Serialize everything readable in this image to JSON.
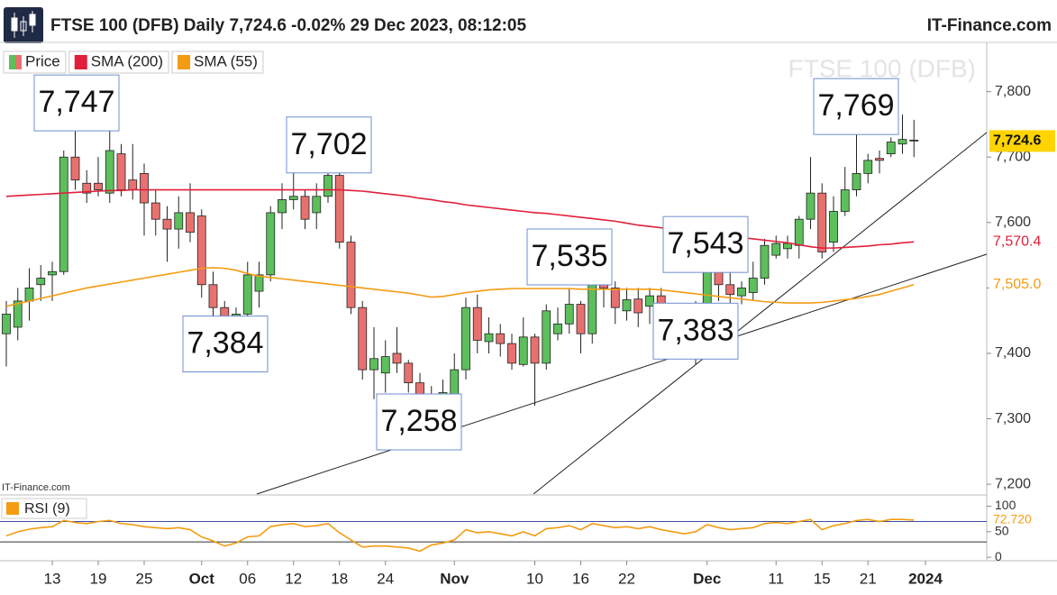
{
  "header": {
    "title": "FTSE 100 (DFB) Daily 7,724.6 -0.02% 29 Dec 2023, 08:12:05",
    "brand": "IT-Finance.com"
  },
  "chart_data": [
    {
      "type": "candlestick",
      "watermark": "FTSE 100 (DFB)",
      "source": "IT-Finance.com",
      "categories": [
        null,
        null,
        null,
        null,
        "13",
        null,
        null,
        null,
        "19",
        null,
        null,
        null,
        "25",
        null,
        null,
        null,
        null,
        "Oct",
        null,
        null,
        null,
        "06",
        null,
        null,
        null,
        "12",
        null,
        null,
        null,
        "18",
        null,
        null,
        null,
        "24",
        null,
        null,
        null,
        null,
        null,
        "Nov",
        null,
        null,
        null,
        null,
        null,
        null,
        "10",
        null,
        null,
        null,
        "16",
        null,
        null,
        null,
        "22",
        null,
        null,
        null,
        null,
        null,
        null,
        "Dec",
        null,
        null,
        null,
        null,
        null,
        "11",
        null,
        null,
        null,
        "15",
        null,
        null,
        null,
        "21",
        null,
        null,
        null,
        null,
        "2024"
      ],
      "series": [
        {
          "name": "Price",
          "up_color": "#5cbf5c",
          "down_color": "#e8716f",
          "last_label": "7,724.6",
          "open": [
            7430,
            7440,
            7480,
            7505,
            7520,
            7525,
            7700,
            7660,
            7660,
            7645,
            7705,
            7665,
            7675,
            7630,
            7605,
            7590,
            7615,
            7610,
            7505,
            7470,
            7425,
            7460,
            7495,
            7520,
            7615,
            7635,
            7640,
            7615,
            7640,
            7672,
            7570,
            7470,
            7375,
            7370,
            7400,
            7385,
            7355,
            7282,
            7325,
            7335,
            7375,
            7470,
            7418,
            7430,
            7415,
            7383,
            7425,
            7385,
            7430,
            7445,
            7475,
            7430,
            7510,
            7500,
            7465,
            7483,
            7472,
            7488,
            7460,
            7445,
            7430,
            7465,
            7530,
            7505,
            7488,
            7493,
            7515,
            7550,
            7560,
            7565,
            7605,
            7645,
            7570,
            7617,
            7650,
            7675,
            7698,
            7705,
            7720,
            7726,
            null
          ],
          "high": [
            7480,
            7500,
            7530,
            7535,
            7540,
            7710,
            7745,
            7680,
            7700,
            7747,
            7720,
            7720,
            7690,
            7650,
            7625,
            7640,
            7660,
            7620,
            7525,
            7480,
            7470,
            7540,
            7540,
            7625,
            7660,
            7680,
            7650,
            7660,
            7702,
            7690,
            7580,
            7480,
            7440,
            7420,
            7440,
            7390,
            7370,
            7350,
            7360,
            7400,
            7485,
            7490,
            7455,
            7445,
            7430,
            7455,
            7430,
            7475,
            7470,
            7500,
            7480,
            7535,
            7520,
            7510,
            7500,
            7500,
            7500,
            7500,
            7470,
            7455,
            7480,
            7543,
            7535,
            7530,
            7510,
            7540,
            7575,
            7580,
            7580,
            7610,
            7700,
            7660,
            7640,
            7685,
            7769,
            7705,
            7710,
            7730,
            7765,
            7757,
            null
          ],
          "low": [
            7380,
            7420,
            7450,
            7480,
            7480,
            7520,
            7650,
            7630,
            7640,
            7630,
            7640,
            7635,
            7580,
            7580,
            7540,
            7560,
            7570,
            7485,
            7450,
            7384,
            7400,
            7440,
            7470,
            7510,
            7590,
            7620,
            7590,
            7590,
            7630,
            7560,
            7460,
            7360,
            7330,
            7340,
            7370,
            7340,
            7258,
            7270,
            7300,
            7310,
            7360,
            7400,
            7400,
            7395,
            7375,
            7380,
            7320,
            7375,
            7420,
            7430,
            7400,
            7415,
            7470,
            7445,
            7450,
            7440,
            7445,
            7440,
            7400,
            7410,
            7383,
            7450,
            7480,
            7465,
            7475,
            7480,
            7505,
            7545,
            7545,
            7545,
            7590,
            7545,
            7555,
            7610,
            7640,
            7660,
            7675,
            7700,
            7705,
            7700,
            null
          ],
          "close": [
            7460,
            7480,
            7500,
            7515,
            7525,
            7700,
            7665,
            7645,
            7650,
            7710,
            7650,
            7650,
            7630,
            7605,
            7590,
            7615,
            7585,
            7505,
            7470,
            7425,
            7460,
            7520,
            7520,
            7615,
            7635,
            7640,
            7605,
            7640,
            7672,
            7570,
            7470,
            7375,
            7392,
            7395,
            7385,
            7355,
            7268,
            7335,
            7340,
            7375,
            7470,
            7420,
            7430,
            7415,
            7385,
            7425,
            7385,
            7465,
            7445,
            7475,
            7430,
            7510,
            7500,
            7470,
            7482,
            7462,
            7488,
            7460,
            7445,
            7432,
            7465,
            7530,
            7505,
            7490,
            7500,
            7515,
            7565,
            7568,
            7568,
            7605,
            7645,
            7555,
            7617,
            7650,
            7675,
            7695,
            7695,
            7723,
            7727,
            7724.6,
            null
          ]
        },
        {
          "name": "SMA (200)",
          "color": "#e0203a",
          "last_label": "7,570.4",
          "values": [
            7640,
            7641,
            7642,
            7643,
            7644,
            7645,
            7646,
            7647,
            7648,
            7649,
            7649,
            7650,
            7650,
            7650,
            7650,
            7650,
            7650,
            7650,
            7650,
            7650,
            7650,
            7650,
            7650,
            7650,
            7650,
            7650,
            7650,
            7650,
            7650,
            7650,
            7649,
            7648,
            7646,
            7644,
            7642,
            7640,
            7637,
            7635,
            7632,
            7630,
            7627,
            7625,
            7623,
            7621,
            7619,
            7617,
            7615,
            7614,
            7612,
            7610,
            7608,
            7606,
            7604,
            7602,
            7599,
            7596,
            7594,
            7592,
            7589,
            7587,
            7585,
            7583,
            7581,
            7579,
            7577,
            7575,
            7573,
            7571,
            7569,
            7566,
            7563,
            7561,
            7561,
            7562,
            7563,
            7564,
            7566,
            7567,
            7569,
            7570.4,
            null
          ]
        },
        {
          "name": "SMA (55)",
          "color": "#f39c12",
          "last_label": "7,505.0",
          "values": [
            7472,
            7476,
            7480,
            7484,
            7488,
            7492,
            7496,
            7500,
            7503,
            7506,
            7509,
            7512,
            7515,
            7518,
            7521,
            7524,
            7527,
            7530,
            7531,
            7530,
            7527,
            7522,
            7518,
            7516,
            7514,
            7512,
            7510,
            7508,
            7506,
            7504,
            7502,
            7500,
            7498,
            7496,
            7494,
            7492,
            7489,
            7486,
            7487,
            7490,
            7493,
            7495,
            7497,
            7498,
            7499,
            7499,
            7499,
            7499,
            7499,
            7499,
            7498,
            7498,
            7498,
            7498,
            7498,
            7498,
            7498,
            7497,
            7495,
            7493,
            7491,
            7489,
            7487,
            7485,
            7483,
            7481,
            7479,
            7478,
            7477,
            7477,
            7477,
            7478,
            7480,
            7482,
            7484,
            7487,
            7490,
            7495,
            7500,
            7505.0,
            null
          ]
        }
      ],
      "annotations": [
        {
          "text": "7,747",
          "value": 7747
        },
        {
          "text": "7,702",
          "value": 7702
        },
        {
          "text": "7,384",
          "value": 7384
        },
        {
          "text": "7,258",
          "value": 7258
        },
        {
          "text": "7,535",
          "value": 7535
        },
        {
          "text": "7,543",
          "value": 7543
        },
        {
          "text": "7,383",
          "value": 7383
        },
        {
          "text": "7,769",
          "value": 7769
        }
      ],
      "ylim": [
        7185,
        7885
      ],
      "yticks": [
        {
          "value": 7800,
          "label": "7,800"
        },
        {
          "value": 7700,
          "label": "7,700"
        },
        {
          "value": 7600,
          "label": "7,600"
        },
        {
          "value": 7500,
          "label": "7,500"
        },
        {
          "value": 7400,
          "label": "7,400"
        },
        {
          "value": 7300,
          "label": "7,300"
        },
        {
          "value": 7200,
          "label": "7,200"
        }
      ]
    },
    {
      "type": "line",
      "series": [
        {
          "name": "RSI (9)",
          "color": "#f39c12",
          "last_label": "72.720",
          "values": [
            42,
            50,
            55,
            58,
            60,
            72,
            68,
            66,
            70,
            72,
            66,
            64,
            60,
            58,
            56,
            58,
            54,
            40,
            32,
            22,
            28,
            40,
            42,
            60,
            64,
            66,
            60,
            62,
            66,
            48,
            34,
            20,
            22,
            22,
            20,
            18,
            12,
            24,
            28,
            34,
            54,
            48,
            50,
            46,
            42,
            50,
            42,
            56,
            58,
            62,
            54,
            66,
            62,
            58,
            60,
            56,
            60,
            54,
            50,
            46,
            50,
            64,
            58,
            54,
            56,
            58,
            66,
            68,
            66,
            70,
            74,
            54,
            62,
            66,
            72,
            74,
            70,
            74,
            74,
            72.72,
            null
          ]
        }
      ],
      "bands": [
        70,
        30
      ],
      "ylim": [
        -5,
        115
      ],
      "yticks": [
        100,
        50,
        0
      ]
    }
  ]
}
